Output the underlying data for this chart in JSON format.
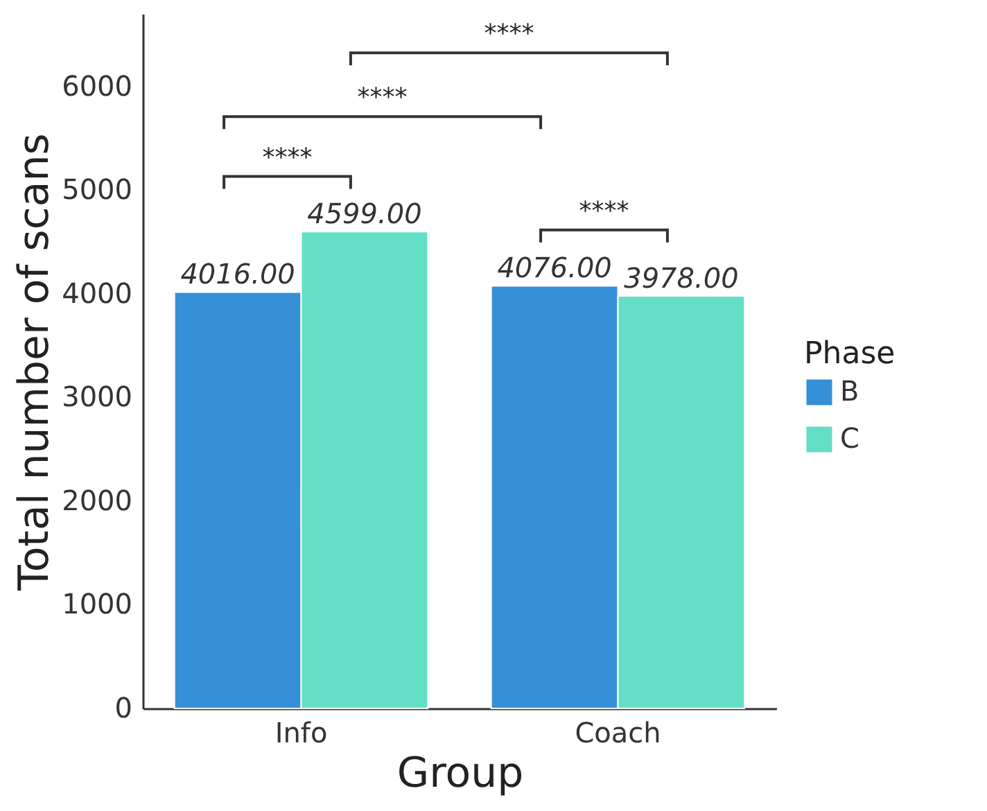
{
  "chart_data": {
    "type": "bar",
    "xlabel": "Group",
    "ylabel": "Total number of scans",
    "legend_title": "Phase",
    "legend": "right",
    "categories": [
      "Info",
      "Coach"
    ],
    "series": [
      {
        "name": "B",
        "color": "#3590d8",
        "values": [
          4016,
          4076
        ],
        "value_labels": [
          "4016.00",
          "4076.00"
        ]
      },
      {
        "name": "C",
        "color": "#62dfc5",
        "values": [
          4599,
          3978
        ],
        "value_labels": [
          "4599.00",
          "3978.00"
        ]
      }
    ],
    "ylim": [
      0,
      6700
    ],
    "yticks": [
      0,
      1000,
      2000,
      3000,
      4000,
      5000,
      6000
    ],
    "annotations": [
      "****",
      "****",
      "****",
      "****"
    ]
  }
}
